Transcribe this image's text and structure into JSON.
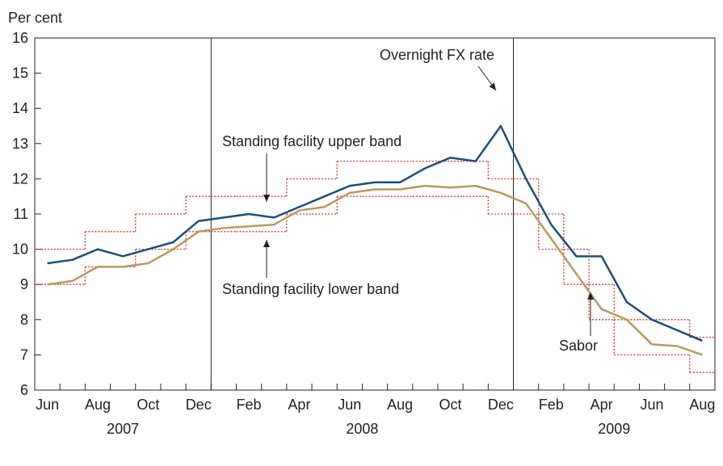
{
  "chart_data": {
    "type": "line",
    "y_label": "Per cent",
    "categories": [
      "Jun",
      null,
      "Aug",
      null,
      "Oct",
      null,
      "Dec",
      null,
      "Feb",
      null,
      "Apr",
      null,
      "Jun",
      null,
      "Aug",
      null,
      "Oct",
      null,
      "Dec",
      null,
      "Feb",
      null,
      "Apr",
      null,
      "Jun",
      null,
      "Aug"
    ],
    "years": [
      "2007",
      "2008",
      "2009"
    ],
    "ylim": [
      6,
      16
    ],
    "yticks": [
      6,
      7,
      8,
      9,
      10,
      11,
      12,
      13,
      14,
      15,
      16
    ],
    "series": [
      {
        "name": "Standing facility upper band",
        "color": "#d9342b",
        "style": "step",
        "values": [
          10.0,
          10.0,
          10.5,
          10.5,
          11.0,
          11.0,
          11.5,
          11.5,
          11.5,
          11.5,
          12.0,
          12.0,
          12.5,
          12.5,
          12.5,
          12.5,
          12.5,
          12.5,
          12.0,
          12.0,
          11.0,
          10.0,
          9.0,
          8.0,
          8.0,
          8.0,
          7.5
        ]
      },
      {
        "name": "Standing facility lower band",
        "color": "#d9342b",
        "style": "step",
        "values": [
          9.0,
          9.0,
          9.5,
          9.5,
          10.0,
          10.0,
          10.5,
          10.5,
          10.5,
          10.5,
          11.0,
          11.0,
          11.5,
          11.5,
          11.5,
          11.5,
          11.5,
          11.5,
          11.0,
          11.0,
          10.0,
          9.0,
          8.0,
          7.0,
          7.0,
          7.0,
          6.5
        ]
      },
      {
        "name": "Sabor",
        "color": "#b79a62",
        "style": "line",
        "values": [
          9.0,
          9.1,
          9.5,
          9.5,
          9.6,
          10.0,
          10.5,
          10.6,
          10.65,
          10.7,
          11.1,
          11.2,
          11.6,
          11.7,
          11.7,
          11.8,
          11.75,
          11.8,
          11.6,
          11.3,
          10.3,
          9.3,
          8.3,
          8.0,
          7.3,
          7.25,
          7.0
        ]
      },
      {
        "name": "Overnight FX rate",
        "color": "#1c4f7c",
        "style": "line",
        "values": [
          9.6,
          9.7,
          10.0,
          9.8,
          10.0,
          10.2,
          10.8,
          10.9,
          11.0,
          10.9,
          11.2,
          11.5,
          11.8,
          11.9,
          11.9,
          12.3,
          12.6,
          12.5,
          13.5,
          12.0,
          10.7,
          9.8,
          9.8,
          8.5,
          8.0,
          7.7,
          7.4
        ]
      }
    ]
  }
}
